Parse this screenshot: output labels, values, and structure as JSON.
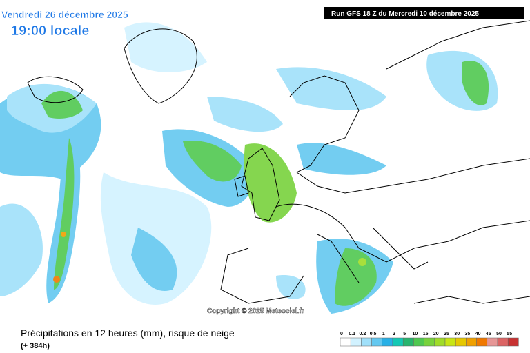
{
  "header": {
    "date": "Vendredi 26 décembre 2025",
    "time": "19:00 locale",
    "run": "Run GFS 18 Z du Mercredi 10 décembre 2025"
  },
  "map": {
    "copyright": "Copyright © 2025 Meteociel.fr"
  },
  "footer": {
    "title": "Précipitations en 12 heures (mm), risque de neige",
    "lead": "(+ 384h)"
  },
  "legend": {
    "items": [
      {
        "label": "0",
        "color": "#ffffff"
      },
      {
        "label": "0.1",
        "color": "#d2f2ff"
      },
      {
        "label": "0.2",
        "color": "#a0e0fa"
      },
      {
        "label": "0.5",
        "color": "#64c8f0"
      },
      {
        "label": "1",
        "color": "#28b0e6"
      },
      {
        "label": "2",
        "color": "#14c8b4"
      },
      {
        "label": "5",
        "color": "#28b46e"
      },
      {
        "label": "10",
        "color": "#50c850"
      },
      {
        "label": "15",
        "color": "#78d23c"
      },
      {
        "label": "20",
        "color": "#a0dc28"
      },
      {
        "label": "25",
        "color": "#c8e614"
      },
      {
        "label": "30",
        "color": "#e6c800"
      },
      {
        "label": "35",
        "color": "#f0a000"
      },
      {
        "label": "40",
        "color": "#f07800"
      },
      {
        "label": "45",
        "color": "#e69696"
      },
      {
        "label": "50",
        "color": "#dc6464"
      },
      {
        "label": "55",
        "color": "#c83232"
      }
    ]
  }
}
